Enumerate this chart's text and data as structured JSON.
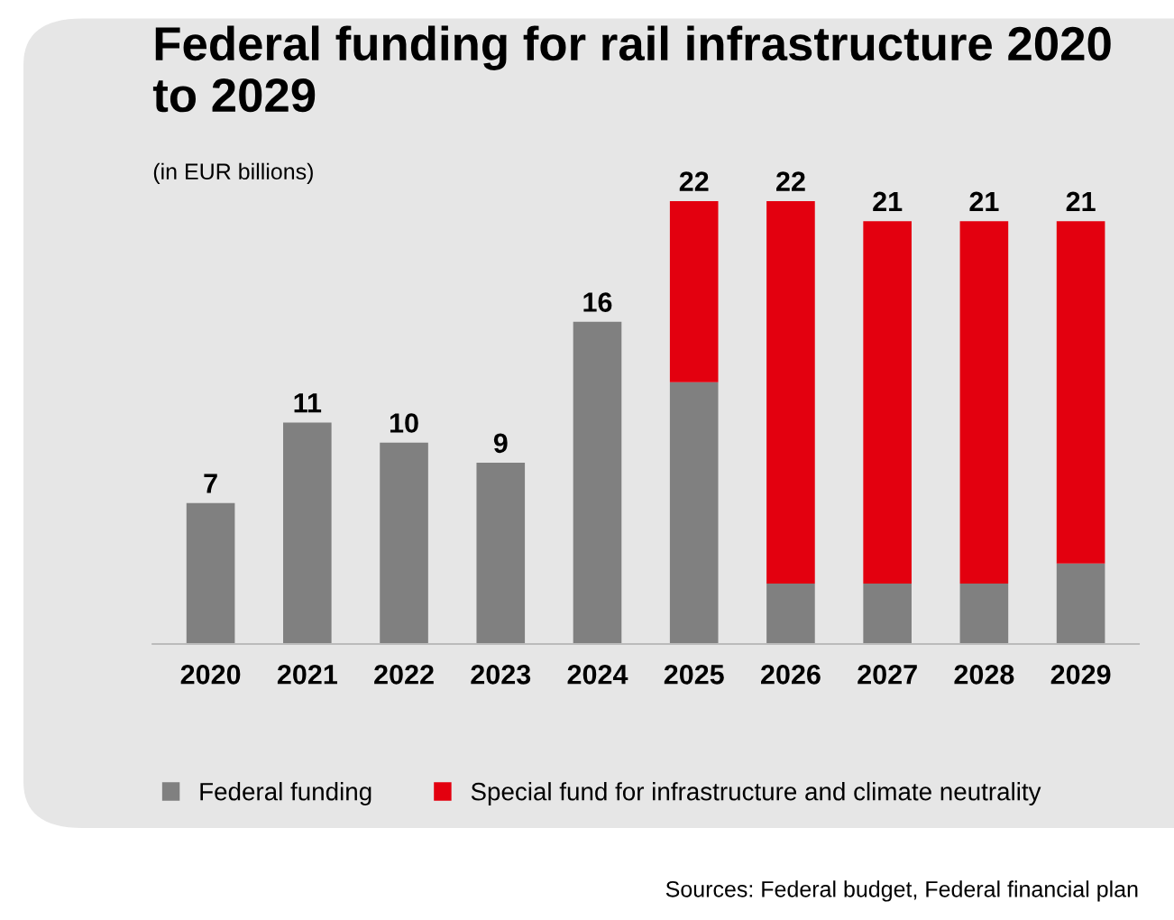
{
  "chart_data": {
    "type": "bar",
    "stacked": true,
    "title": "Federal funding for rail infrastructure 2020\nto 2029",
    "subtitle": "(in EUR billions)",
    "categories": [
      "2020",
      "2021",
      "2022",
      "2023",
      "2024",
      "2025",
      "2026",
      "2027",
      "2028",
      "2029"
    ],
    "series": [
      {
        "name": "Federal funding",
        "color": "#808080",
        "values": [
          7,
          11,
          10,
          9,
          16,
          13,
          3,
          3,
          3,
          4
        ],
        "value_labels": [
          "7",
          "11",
          "10",
          "9",
          "16",
          null,
          null,
          null,
          null,
          null
        ]
      },
      {
        "name": "Special fund for infrastructure and climate neutrality",
        "color": "#e3000f",
        "values": [
          null,
          null,
          null,
          null,
          null,
          9,
          19,
          18,
          18,
          17
        ]
      }
    ],
    "totals": [
      null,
      null,
      null,
      null,
      null,
      "22",
      "22",
      "21",
      "21",
      "21"
    ],
    "legend": "bottom",
    "grid": false,
    "tick_labels": "x",
    "annotations": [
      "Sources: Federal budget, Federal financial plan"
    ]
  }
}
